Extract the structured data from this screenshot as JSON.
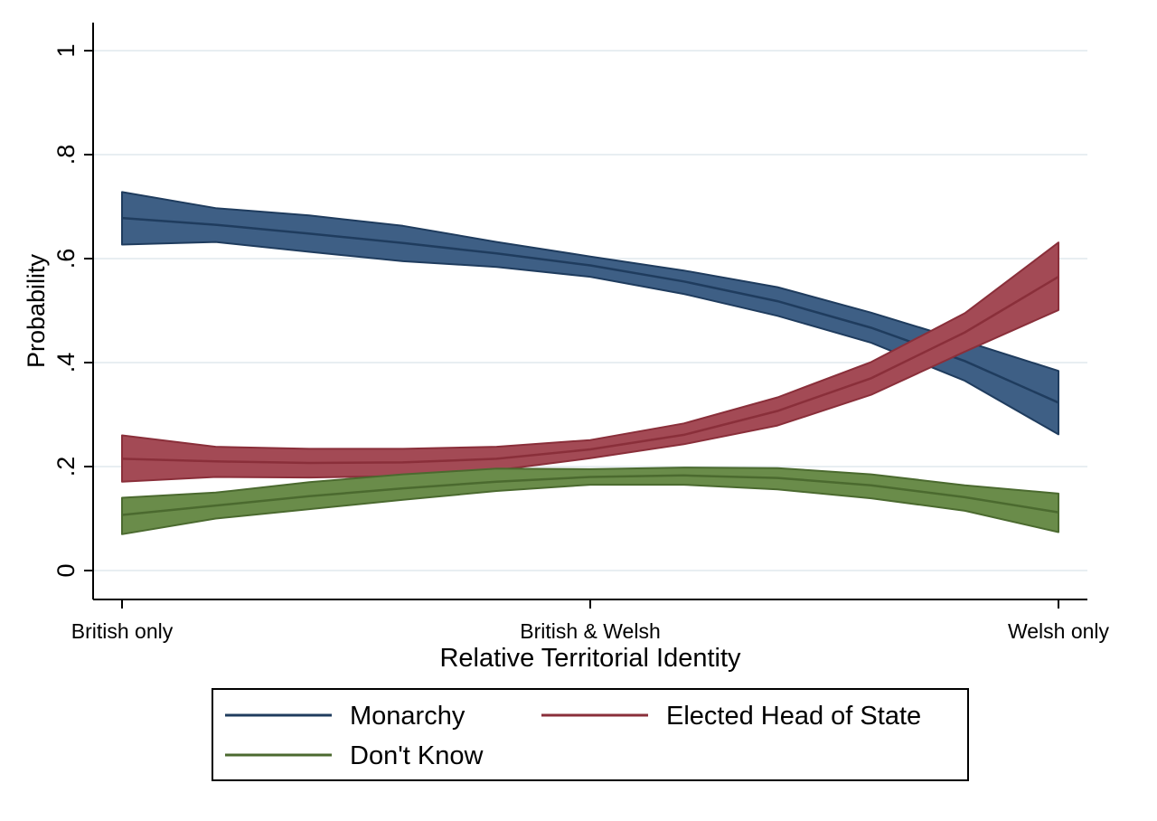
{
  "chart_data": {
    "type": "area",
    "title": "",
    "xlabel": "Relative Territorial Identity",
    "ylabel": "Probability",
    "xlim": [
      1,
      11
    ],
    "ylim": [
      -0.055,
      1.04
    ],
    "x_ticks": [
      {
        "value": 1,
        "label": "British only"
      },
      {
        "value": 6,
        "label": "British & Welsh"
      },
      {
        "value": 11,
        "label": "Welsh only"
      }
    ],
    "y_ticks": [
      {
        "value": 0,
        "label": "0"
      },
      {
        "value": 0.2,
        "label": ".2"
      },
      {
        "value": 0.4,
        "label": ".4"
      },
      {
        "value": 0.6,
        "label": ".6"
      },
      {
        "value": 0.8,
        "label": ".8"
      },
      {
        "value": 1,
        "label": "1"
      }
    ],
    "grid": true,
    "legend_position": "bottom",
    "x": [
      1,
      2,
      3,
      4,
      5,
      6,
      7,
      8,
      9,
      10,
      11
    ],
    "series": [
      {
        "name": "Monarchy",
        "color": "#3e5f85",
        "line_color": "#1f3c5e",
        "mean": [
          0.678,
          0.665,
          0.648,
          0.63,
          0.61,
          0.587,
          0.556,
          0.518,
          0.467,
          0.403,
          0.323
        ],
        "upper": [
          0.728,
          0.697,
          0.683,
          0.663,
          0.632,
          0.604,
          0.577,
          0.545,
          0.496,
          0.441,
          0.384
        ],
        "lower": [
          0.627,
          0.632,
          0.613,
          0.595,
          0.584,
          0.565,
          0.532,
          0.49,
          0.438,
          0.365,
          0.262
        ]
      },
      {
        "name": "Elected Head of State",
        "color": "#a34a55",
        "line_color": "#8a2f3a",
        "mean": [
          0.215,
          0.21,
          0.207,
          0.208,
          0.215,
          0.233,
          0.261,
          0.307,
          0.37,
          0.458,
          0.565
        ],
        "upper": [
          0.26,
          0.238,
          0.234,
          0.234,
          0.238,
          0.251,
          0.283,
          0.333,
          0.401,
          0.495,
          0.631
        ],
        "lower": [
          0.171,
          0.18,
          0.179,
          0.182,
          0.193,
          0.216,
          0.243,
          0.279,
          0.338,
          0.421,
          0.501
        ]
      },
      {
        "name": "Don't Know",
        "color": "#6a8c4a",
        "line_color": "#4b6a2f",
        "mean": [
          0.107,
          0.125,
          0.143,
          0.158,
          0.171,
          0.18,
          0.183,
          0.178,
          0.164,
          0.141,
          0.112
        ],
        "upper": [
          0.14,
          0.15,
          0.17,
          0.185,
          0.196,
          0.195,
          0.198,
          0.197,
          0.185,
          0.164,
          0.148
        ],
        "lower": [
          0.07,
          0.1,
          0.118,
          0.136,
          0.153,
          0.165,
          0.165,
          0.156,
          0.139,
          0.115,
          0.074
        ]
      }
    ],
    "legend": [
      {
        "label": "Monarchy",
        "color": "#1f3c5e"
      },
      {
        "label": "Elected Head of State",
        "color": "#8a2f3a"
      },
      {
        "label": "Don't Know",
        "color": "#4b6a2f"
      }
    ]
  }
}
